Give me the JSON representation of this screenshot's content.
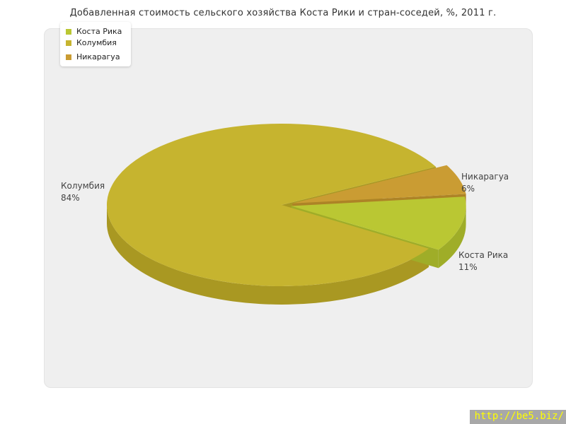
{
  "chart_data": {
    "type": "pie",
    "title": "Добавленная стоимость сельского хозяйства Коста Рики и стран-соседей, %, 2011 г.",
    "unit": "%",
    "year": "2011",
    "legend_position": "top-left",
    "direction": "clockwise",
    "start_angle_deg": 28,
    "style_3d": true,
    "slices": [
      {
        "key": "costa-rica",
        "label": "Коста Рика",
        "value": 11,
        "display": "11%",
        "color": "#bac733",
        "side_color": "#9fad28",
        "exploded": true
      },
      {
        "key": "colombia",
        "label": "Колумбия",
        "value": 84,
        "display": "84%",
        "color": "#c6b42f",
        "side_color": "#a99822",
        "exploded": false
      },
      {
        "key": "nicaragua",
        "label": "Никарагуа",
        "value": 6,
        "display": "6%",
        "color": "#ca9c33",
        "side_color": "#ad8326",
        "exploded": true
      }
    ]
  },
  "panel": {
    "background": "#efefef",
    "border": "#e3e3e3"
  },
  "watermark": {
    "text": "http://be5.biz/",
    "text_color": "#ffff00",
    "background": "#a8a8a8"
  }
}
